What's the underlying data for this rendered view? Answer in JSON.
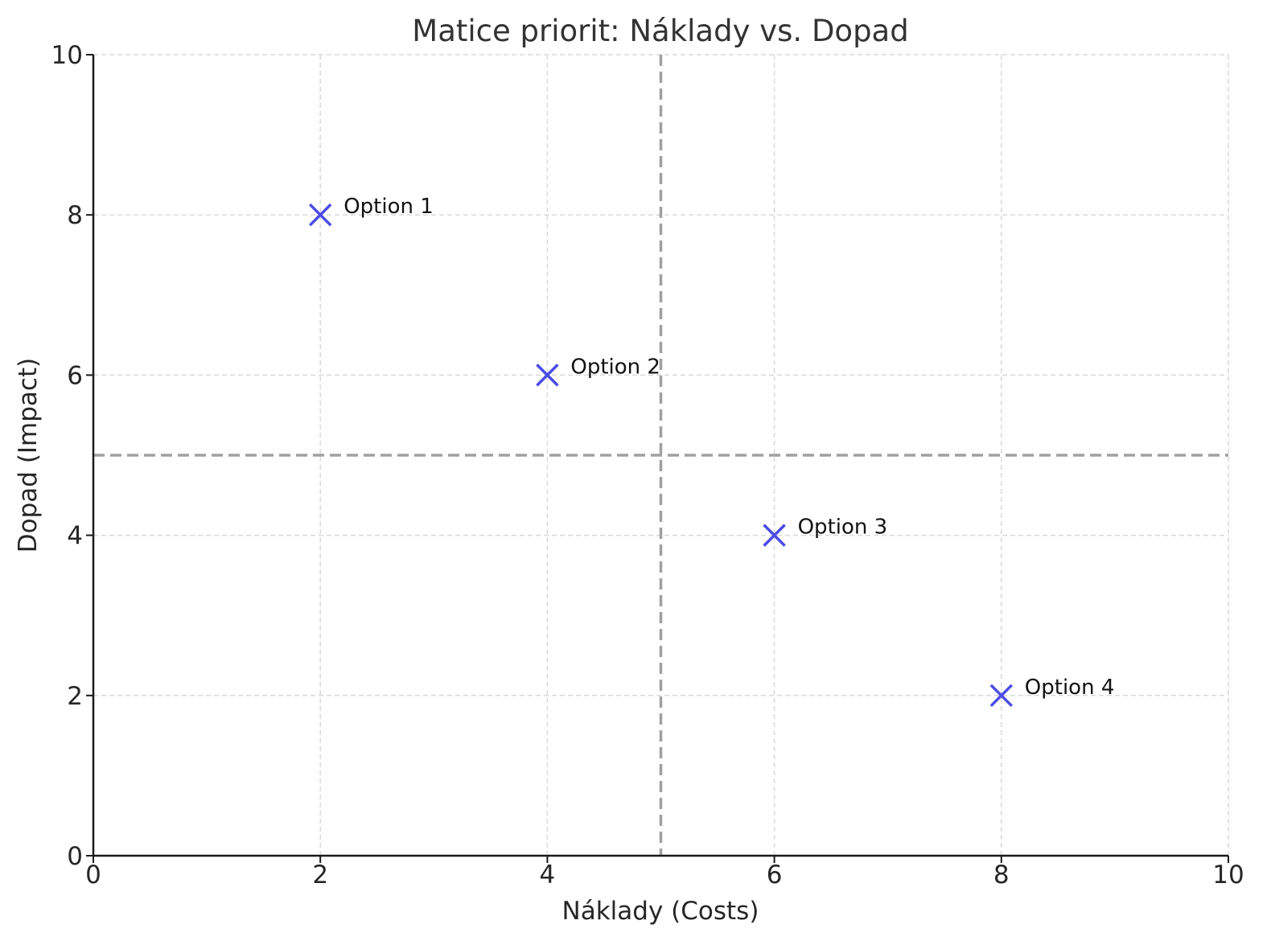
{
  "chart_data": {
    "type": "scatter",
    "title": "Matice priorit: Náklady vs. Dopad",
    "xlabel": "Náklady (Costs)",
    "ylabel": "Dopad (Impact)",
    "xlim": [
      0,
      10
    ],
    "ylim": [
      0,
      10
    ],
    "x_ticks": [
      0,
      2,
      4,
      6,
      8,
      10
    ],
    "y_ticks": [
      0,
      2,
      4,
      6,
      8,
      10
    ],
    "grid": true,
    "marker": "x",
    "marker_color": "#4b4be6",
    "reference_lines": {
      "x": 5,
      "y": 5,
      "style": "dashed",
      "color": "#a0a0a0"
    },
    "points": [
      {
        "label": "Option 1",
        "x": 2,
        "y": 8
      },
      {
        "label": "Option 2",
        "x": 4,
        "y": 6
      },
      {
        "label": "Option 3",
        "x": 6,
        "y": 4
      },
      {
        "label": "Option 4",
        "x": 8,
        "y": 2
      }
    ]
  }
}
